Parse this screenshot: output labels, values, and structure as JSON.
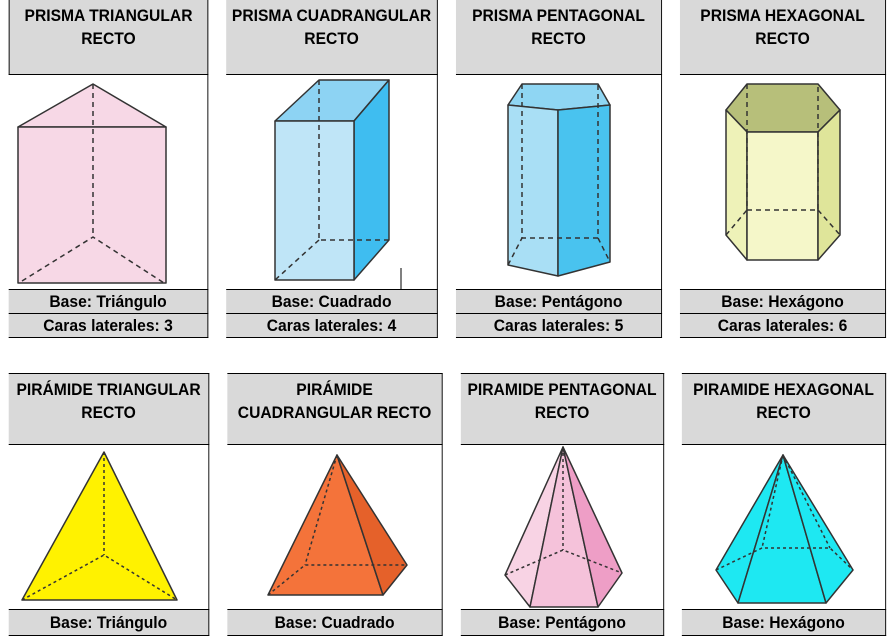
{
  "prisms": {
    "headers": [
      "PRISMA TRIANGULAR RECTO",
      "PRISMA CUADRANGULAR RECTO",
      "PRISMA PENTAGONAL RECTO",
      "PRISMA HEXAGONAL RECTO"
    ],
    "bases": [
      "Base: Triángulo",
      "Base: Cuadrado",
      "Base: Pentágono",
      "Base: Hexágono"
    ],
    "faces": [
      "Caras laterales: 3",
      "Caras laterales: 4",
      "Caras laterales: 5",
      "Caras laterales: 6"
    ],
    "colors": [
      "#f7d8e6",
      "#bfe5f7",
      "#a9dff5",
      "#eef2b8"
    ]
  },
  "pyramids": {
    "headers": [
      "PIRÁMIDE TRIANGULAR RECTO",
      "PIRÁMIDE CUADRANGULAR RECTO",
      "PIRAMIDE PENTAGONAL RECTO",
      "PIRAMIDE HEXAGONAL RECTO"
    ],
    "bases": [
      "Base: Triángulo",
      "Base: Cuadrado",
      "Base: Pentágono",
      "Base: Hexágono"
    ],
    "colors": [
      "#fff200",
      "#f4733a",
      "#f5c2da",
      "#1ee8f2"
    ]
  }
}
